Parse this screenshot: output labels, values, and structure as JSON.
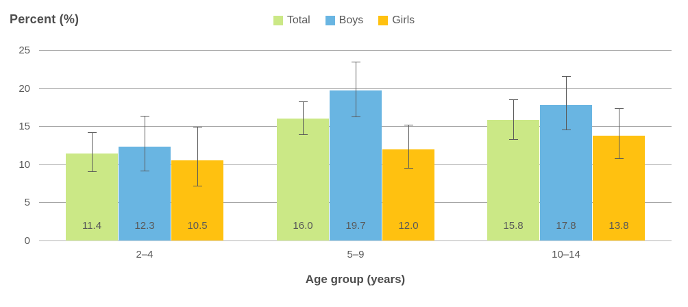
{
  "title": "Percent (%)",
  "xaxis_title": "Age group (years)",
  "colors": {
    "total": "#cbe886",
    "boys": "#69b5e2",
    "girls": "#ffc110",
    "gridline": "#a6a6a6",
    "baseline": "#d9d9d9",
    "text": "#595959",
    "title_text": "#4d4d4d",
    "error_bar": "#595959"
  },
  "chart_data": {
    "type": "bar",
    "title": "Percent (%)",
    "xlabel": "Age group (years)",
    "ylabel": "Percent (%)",
    "categories": [
      "2–4",
      "5–9",
      "10–14"
    ],
    "series": [
      {
        "name": "Total",
        "color": "#cbe886",
        "values": [
          11.4,
          16.0,
          15.8
        ],
        "ci_low": [
          9.1,
          13.9,
          13.3
        ],
        "ci_high": [
          14.2,
          18.3,
          18.5
        ]
      },
      {
        "name": "Boys",
        "color": "#69b5e2",
        "values": [
          12.3,
          19.7,
          17.8
        ],
        "ci_low": [
          9.2,
          16.3,
          14.6
        ],
        "ci_high": [
          16.4,
          23.5,
          21.6
        ]
      },
      {
        "name": "Girls",
        "color": "#ffc110",
        "values": [
          10.5,
          12.0,
          13.8
        ],
        "ci_low": [
          7.2,
          9.5,
          10.8
        ],
        "ci_high": [
          14.9,
          15.2,
          17.4
        ]
      }
    ],
    "ylim": [
      0,
      25
    ],
    "yticks": [
      0,
      5,
      10,
      15,
      20,
      25
    ],
    "grid": true,
    "legend_position": "top-center",
    "error_bars": true,
    "bar_labels": "inside-bottom",
    "bar_label_format": "one-decimal"
  }
}
